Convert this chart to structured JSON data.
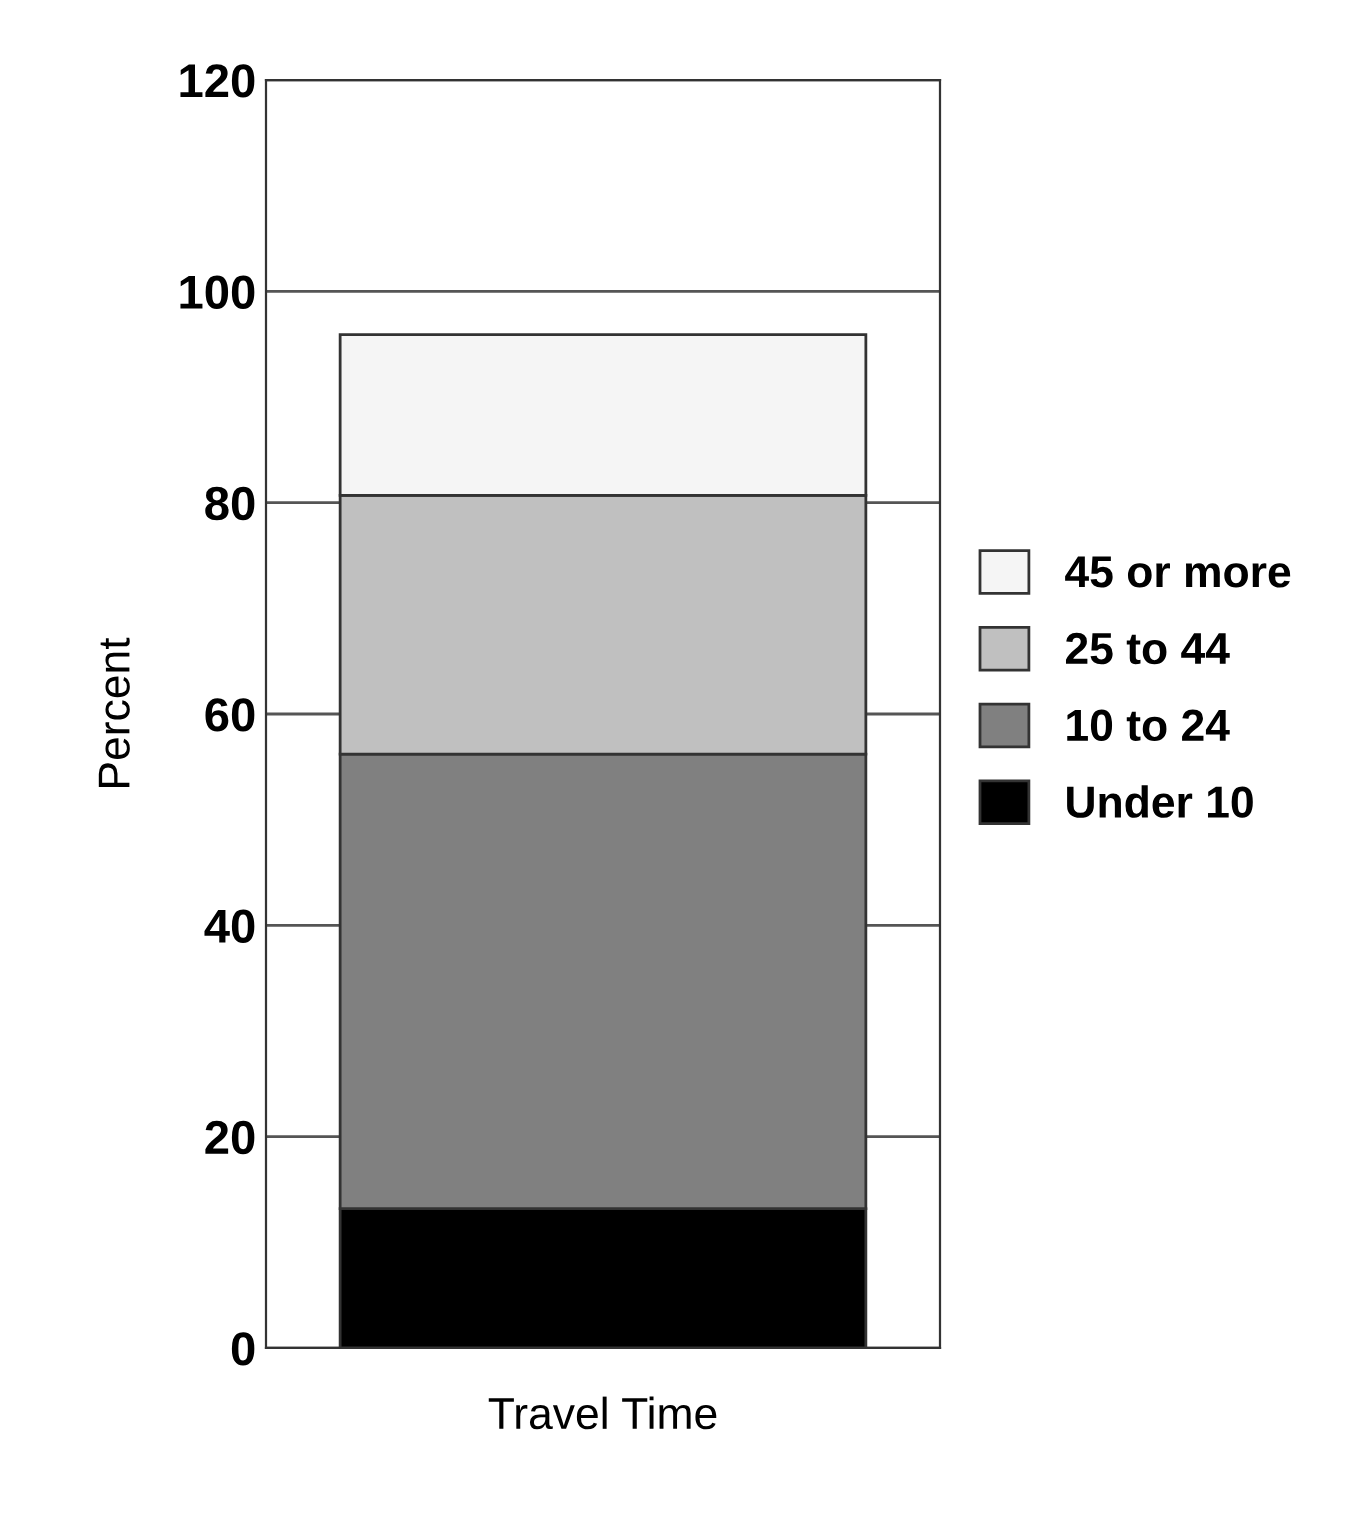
{
  "chart_data": {
    "type": "bar",
    "stacked": true,
    "categories": [
      null
    ],
    "xlabel": "Travel Time",
    "ylabel": "Percent",
    "series": [
      {
        "name": "Under 10",
        "color": "#000000",
        "values": [
          13.2
        ]
      },
      {
        "name": "10 to 24",
        "color": "#808080",
        "values": [
          43.0
        ]
      },
      {
        "name": "25 to 44",
        "color": "#c0c0c0",
        "values": [
          24.5
        ]
      },
      {
        "name": "45 or more",
        "color": "#f5f5f5",
        "values": [
          15.2
        ]
      }
    ],
    "ylim": [
      0,
      120
    ],
    "yticks": [
      0,
      20,
      40,
      60,
      80,
      100,
      120
    ],
    "grid": "y",
    "legend": "right"
  }
}
